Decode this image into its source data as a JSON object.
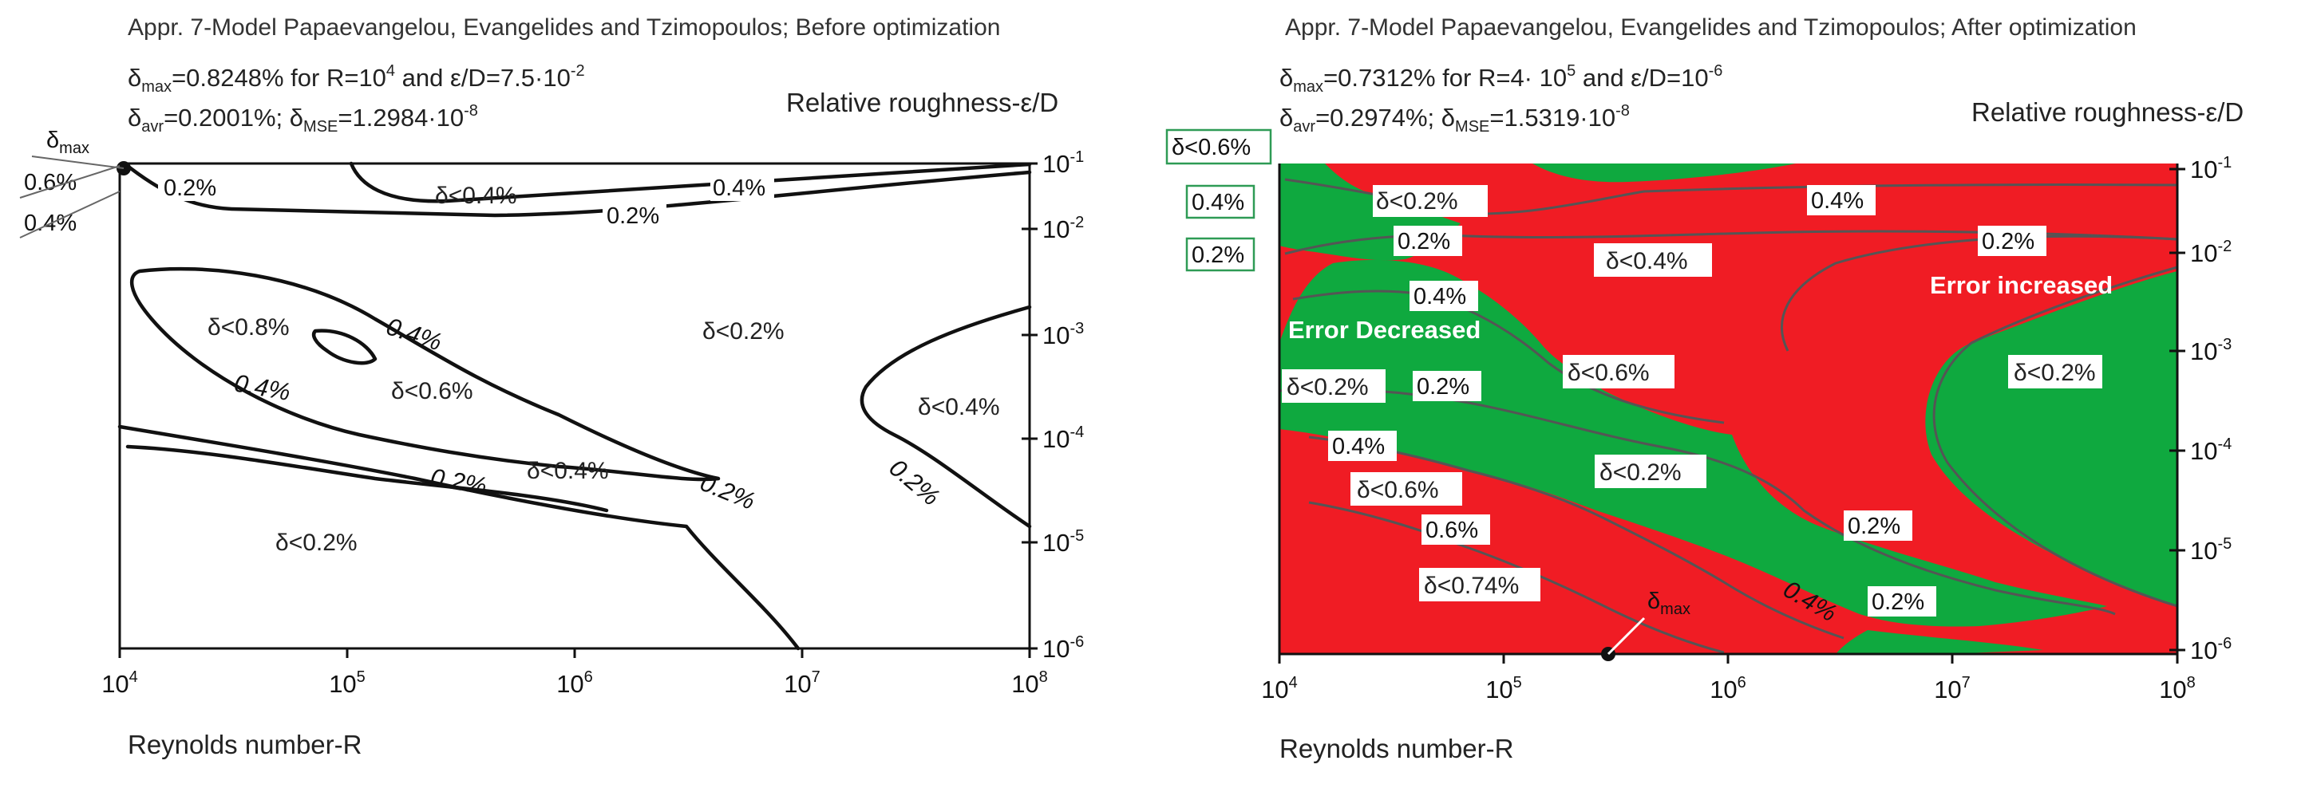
{
  "colors": {
    "red": "#f01c24",
    "green": "#0fa93f",
    "line": "#111111",
    "label_border": "#2e9b55"
  },
  "chart_data": [
    {
      "type": "contour",
      "title": "Appr. 7-Model Papaevangelou, Evangelides and Tzimopoulos; Before optimization",
      "stats": {
        "max_sym": "δ",
        "max_sub": "max",
        "max_text": "=0.8248% for R=10",
        "max_r_exp": "4",
        "max_and": " and ε/D=7.5·10",
        "max_e_exp": "-2",
        "avr_sym": "δ",
        "avr_sub": "avr",
        "avr_text": "=0.2001%; ",
        "mse_sym": "δ",
        "mse_sub": "MSE",
        "mse_text": "=1.2984·10",
        "mse_exp": "-8"
      },
      "xlabel": "Reynolds number-R",
      "ylabel": "Relative roughness-ε/D",
      "xlim": [
        10000,
        100000000
      ],
      "ylim": [
        1e-06,
        0.1
      ],
      "x_ticks": [
        {
          "base": "10",
          "exp": "4"
        },
        {
          "base": "10",
          "exp": "5"
        },
        {
          "base": "10",
          "exp": "6"
        },
        {
          "base": "10",
          "exp": "7"
        },
        {
          "base": "10",
          "exp": "8"
        }
      ],
      "y_ticks": [
        {
          "base": "10",
          "exp": "-1"
        },
        {
          "base": "10",
          "exp": "-2"
        },
        {
          "base": "10",
          "exp": "-3"
        },
        {
          "base": "10",
          "exp": "-4"
        },
        {
          "base": "10",
          "exp": "-5"
        },
        {
          "base": "10",
          "exp": "-6"
        }
      ],
      "regions": [
        "δ<0.4%",
        "δ<0.2%",
        "δ<0.8%",
        "δ<0.6%",
        "δ<0.4%",
        "δ<0.4%",
        "δ<0.2%"
      ],
      "contour_labels": [
        "0.2%",
        "0.4%",
        "0.2%",
        "0.4%",
        "0.4%",
        "0.2%",
        "0.2%",
        "0.2%"
      ],
      "left_labels": {
        "max": "δ",
        "max_sub": "max",
        "v1": "0.6%",
        "v2": "0.4%"
      }
    },
    {
      "type": "contour",
      "title": "Appr. 7-Model Papaevangelou, Evangelides and Tzimopoulos; After optimization",
      "stats": {
        "max_sym": "δ",
        "max_sub": "max",
        "max_text": "=0.7312% for R=4· 10",
        "max_r_exp": "5",
        "max_and": " and ε/D=10",
        "max_e_exp": "-6",
        "avr_sym": "δ",
        "avr_sub": "avr",
        "avr_text": "=0.2974%; ",
        "mse_sym": "δ",
        "mse_sub": "MSE",
        "mse_text": "=1.5319·10",
        "mse_exp": "-8"
      },
      "xlabel": "Reynolds number-R",
      "ylabel": "Relative roughness-ε/D",
      "xlim": [
        10000,
        100000000
      ],
      "ylim": [
        1e-06,
        0.1
      ],
      "x_ticks": [
        {
          "base": "10",
          "exp": "4"
        },
        {
          "base": "10",
          "exp": "5"
        },
        {
          "base": "10",
          "exp": "6"
        },
        {
          "base": "10",
          "exp": "7"
        },
        {
          "base": "10",
          "exp": "8"
        }
      ],
      "y_ticks": [
        {
          "base": "10",
          "exp": "-1"
        },
        {
          "base": "10",
          "exp": "-2"
        },
        {
          "base": "10",
          "exp": "-3"
        },
        {
          "base": "10",
          "exp": "-4"
        },
        {
          "base": "10",
          "exp": "-5"
        },
        {
          "base": "10",
          "exp": "-6"
        }
      ],
      "legend": {
        "decreased": "Error Decreased",
        "increased": "Error increased"
      },
      "regions": [
        "δ<0.2%",
        "δ<0.4%",
        "δ<0.6%",
        "δ<0.2%",
        "δ<0.2%",
        "δ<0.6%",
        "δ<0.74%"
      ],
      "contour_labels": [
        "0.2%",
        "0.4%",
        "0.4%",
        "0.2%",
        "0.2%",
        "0.4%",
        "0.2%",
        "0.6%",
        "0.4%",
        "0.2%"
      ],
      "left_labels": {
        "v06": "δ<0.6%",
        "v04": "0.4%",
        "v02": "0.2%",
        "max": "δ",
        "max_sub": "max"
      }
    }
  ]
}
